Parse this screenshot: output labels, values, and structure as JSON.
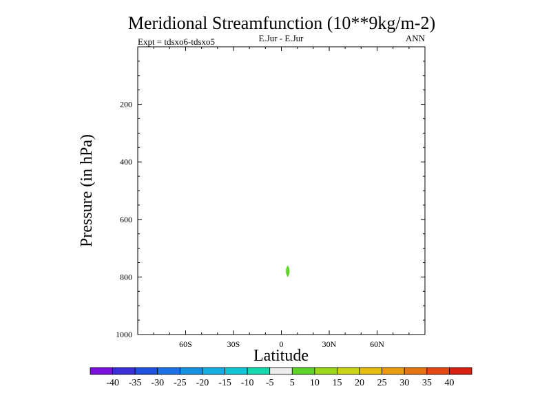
{
  "chart_data": {
    "type": "contour",
    "title": "Meridional Streamfunction (10**9kg/m-2)",
    "subtitle_left": "Expt = tdsxo6-tdsxo5",
    "subtitle_center": "E.Jur - E.Jur",
    "subtitle_right": "ANN",
    "xlabel": "Latitude",
    "ylabel": "Pressure (in hPa)",
    "xlim": [
      -90,
      90
    ],
    "ylim": [
      1000,
      0
    ],
    "x_ticks": [
      {
        "value": -60,
        "label": "60S"
      },
      {
        "value": -30,
        "label": "30S"
      },
      {
        "value": 0,
        "label": "0"
      },
      {
        "value": 30,
        "label": "30N"
      },
      {
        "value": 60,
        "label": "60N"
      }
    ],
    "y_ticks": [
      {
        "value": 200,
        "label": "200"
      },
      {
        "value": 400,
        "label": "400"
      },
      {
        "value": 600,
        "label": "600"
      },
      {
        "value": 800,
        "label": "800"
      },
      {
        "value": 1000,
        "label": "1000"
      }
    ],
    "features": [
      {
        "name": "small positive cell",
        "lat": 4,
        "pressure": 780,
        "lat_halfwidth": 1.2,
        "pressure_halfwidth": 18,
        "color": "#5ed42a",
        "level_range": [
          5,
          10
        ]
      }
    ],
    "colorbar": {
      "labels": [
        "-40",
        "-35",
        "-30",
        "-25",
        "-20",
        "-15",
        "-10",
        "-5",
        "5",
        "10",
        "15",
        "20",
        "25",
        "30",
        "35",
        "40"
      ],
      "colors": [
        "#7a10de",
        "#3a2ed8",
        "#2050e0",
        "#1a72e6",
        "#1690e0",
        "#14aee0",
        "#10c6d6",
        "#16d8ae",
        "#ececec",
        "#5ed42a",
        "#9cd81a",
        "#cad414",
        "#e6bc10",
        "#ea9c10",
        "#e67412",
        "#e44812",
        "#d82010"
      ]
    }
  }
}
